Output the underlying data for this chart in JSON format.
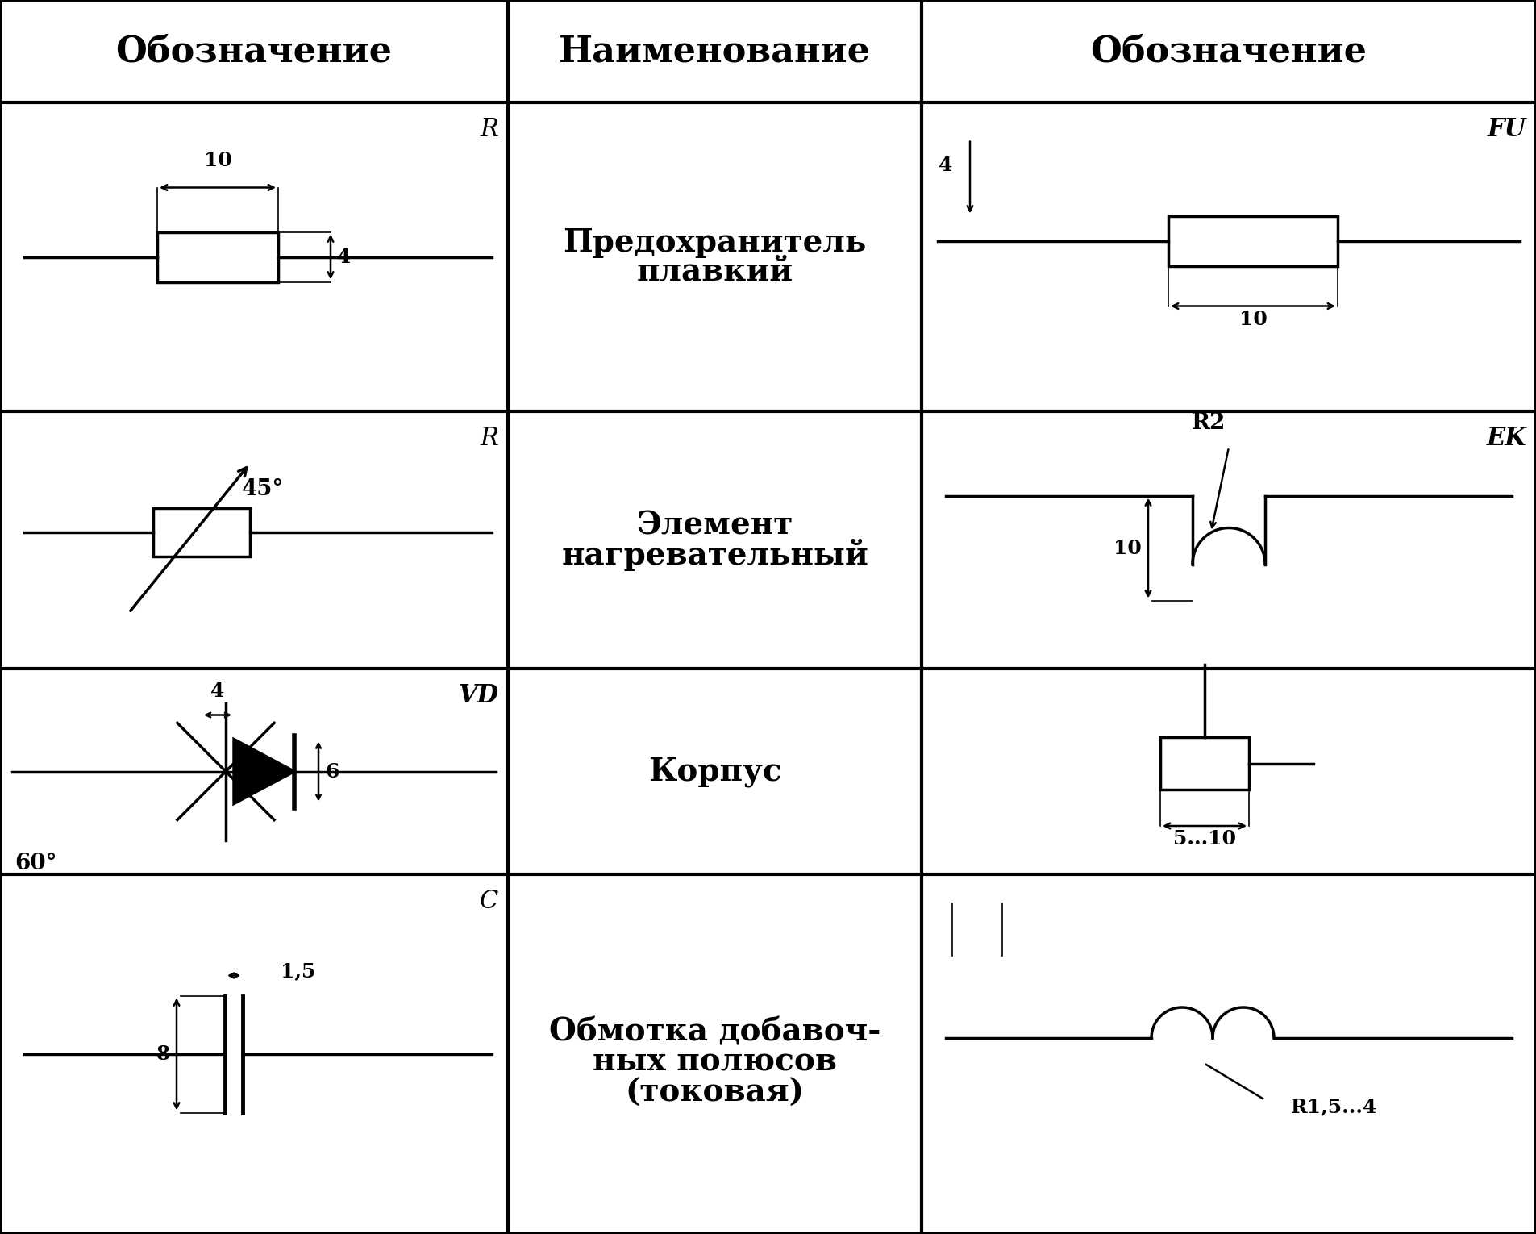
{
  "bg_color": "#ffffff",
  "line_color": "#000000",
  "header_row": [
    "Обозначение",
    "Наименование",
    "Обозначение"
  ],
  "row1_name": [
    "Предохранитель",
    "плавкий"
  ],
  "row2_name": [
    "Элемент",
    "нагревательный"
  ],
  "row3_name": [
    "Корпус"
  ],
  "row4_name": [
    "Обмотка добавоч-",
    "ных полюсов",
    "(токовая)"
  ],
  "lw_border": 3,
  "lw_sym": 2.5,
  "lw_dim": 1.8,
  "lw_dim_line": 1.2,
  "fs_header": 32,
  "fs_name": 28,
  "fs_label": 22,
  "fs_dim": 18
}
